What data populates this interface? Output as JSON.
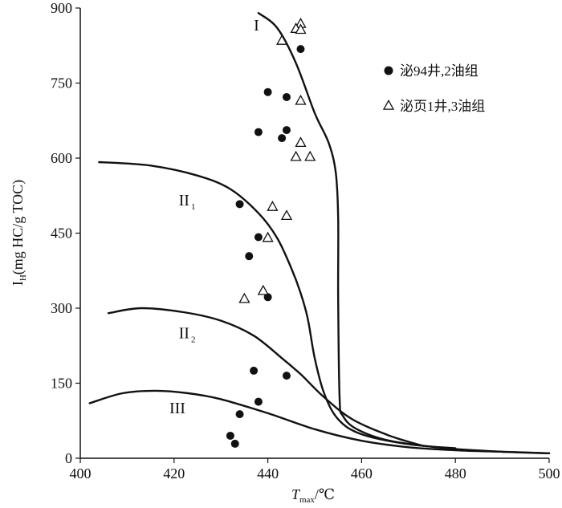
{
  "chart_data": {
    "type": "scatter",
    "xlabel": {
      "main": "T",
      "sub": "max",
      "unit": "/℃"
    },
    "ylabel": {
      "main": "I",
      "sub": "H",
      "unit": "(mg HC/g TOC)"
    },
    "xlim": [
      400,
      500
    ],
    "ylim": [
      0,
      900
    ],
    "x_ticks": [
      "400",
      "420",
      "440",
      "460",
      "480",
      "500"
    ],
    "y_ticks": [
      "0",
      "150",
      "300",
      "450",
      "600",
      "750",
      "900"
    ],
    "grid": false,
    "legend_position": "top-right",
    "colors": {
      "axis": "#111111",
      "curve": "#111111",
      "marker": "#111111"
    },
    "series": [
      {
        "name": "泌94井,2油组",
        "marker": "filled-circle",
        "points": [
          [
            447,
            818
          ],
          [
            440,
            732
          ],
          [
            444,
            722
          ],
          [
            438,
            652
          ],
          [
            444,
            656
          ],
          [
            443,
            640
          ],
          [
            434,
            508
          ],
          [
            438,
            442
          ],
          [
            436,
            404
          ],
          [
            440,
            322
          ],
          [
            437,
            175
          ],
          [
            444,
            165
          ],
          [
            438,
            113
          ],
          [
            434,
            88
          ],
          [
            432,
            45
          ],
          [
            433,
            29
          ]
        ]
      },
      {
        "name": "泌页1井,3油组",
        "marker": "open-triangle",
        "points": [
          [
            447,
            868
          ],
          [
            446,
            858
          ],
          [
            447,
            856
          ],
          [
            443,
            834
          ],
          [
            447,
            714
          ],
          [
            447,
            630
          ],
          [
            446,
            602
          ],
          [
            449,
            602
          ],
          [
            441,
            502
          ],
          [
            444,
            484
          ],
          [
            440,
            440
          ],
          [
            439,
            334
          ],
          [
            435,
            318
          ]
        ]
      }
    ],
    "curves": [
      {
        "label": "I",
        "points": [
          [
            438,
            890
          ],
          [
            442,
            860
          ],
          [
            446,
            790
          ],
          [
            450,
            690
          ],
          [
            453,
            630
          ],
          [
            454.5,
            570
          ],
          [
            455,
            480
          ],
          [
            455,
            320
          ],
          [
            455.3,
            120
          ],
          [
            456,
            85
          ],
          [
            459,
            58
          ],
          [
            466,
            35
          ],
          [
            478,
            20
          ],
          [
            490,
            13
          ],
          [
            500,
            10
          ]
        ]
      },
      {
        "label": "II₁",
        "points": [
          [
            404,
            592
          ],
          [
            415,
            585
          ],
          [
            425,
            565
          ],
          [
            432,
            538
          ],
          [
            438,
            490
          ],
          [
            442,
            440
          ],
          [
            445,
            380
          ],
          [
            447,
            330
          ],
          [
            448.5,
            280
          ],
          [
            450,
            200
          ],
          [
            452,
            130
          ],
          [
            455,
            78
          ],
          [
            460,
            48
          ],
          [
            470,
            28
          ],
          [
            480,
            20
          ]
        ]
      },
      {
        "label": "II₂",
        "points": [
          [
            406,
            290
          ],
          [
            413,
            300
          ],
          [
            422,
            292
          ],
          [
            430,
            275
          ],
          [
            437,
            245
          ],
          [
            443,
            200
          ],
          [
            447,
            168
          ],
          [
            452,
            122
          ],
          [
            458,
            78
          ],
          [
            466,
            45
          ],
          [
            473,
            25
          ]
        ]
      },
      {
        "label": "III",
        "points": [
          [
            402,
            110
          ],
          [
            409,
            130
          ],
          [
            416,
            135
          ],
          [
            423,
            130
          ],
          [
            430,
            118
          ],
          [
            440,
            90
          ],
          [
            450,
            58
          ],
          [
            460,
            35
          ],
          [
            470,
            22
          ],
          [
            480,
            16
          ],
          [
            490,
            13
          ],
          [
            500,
            10
          ]
        ]
      }
    ],
    "curve_labels": [
      {
        "text": "I",
        "x": 437,
        "y": 855
      },
      {
        "text": "II",
        "sub": "1",
        "x": 421,
        "y": 505
      },
      {
        "text": "II",
        "sub": "2",
        "x": 421,
        "y": 240
      },
      {
        "text": "III",
        "x": 419,
        "y": 90
      }
    ]
  }
}
